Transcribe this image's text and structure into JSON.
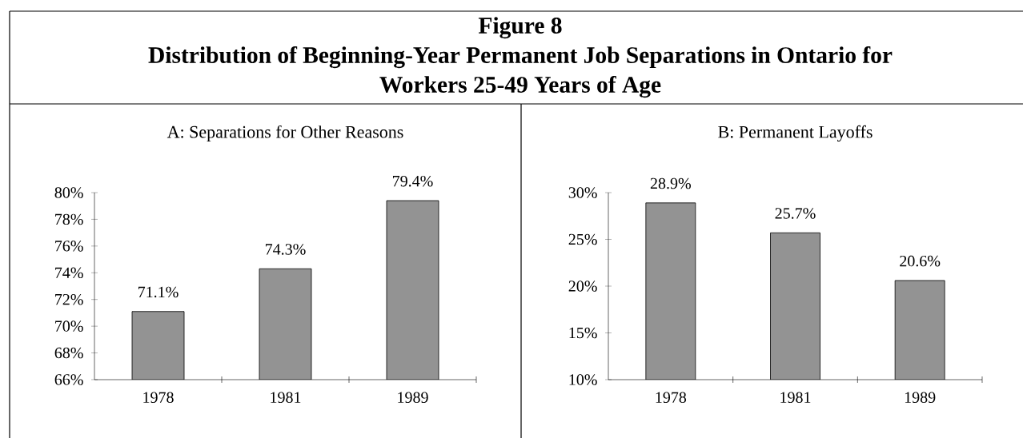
{
  "chart_data": [
    {
      "type": "other",
      "title": "Figure 8",
      "subtitle": "Distribution of Beginning-Year Permanent Job Separations in Ontario for Workers 25-49 Years of Age"
    },
    {
      "type": "bar",
      "title": "A: Separations for Other Reasons",
      "categories": [
        "1978",
        "1981",
        "1989"
      ],
      "values": [
        71.1,
        74.3,
        79.4
      ],
      "color": "#939393",
      "value_labels": [
        "71.1%",
        "74.3%",
        "79.4%"
      ],
      "ylim": [
        66,
        80
      ],
      "yticks": [
        {
          "value": 66,
          "label": "66%"
        },
        {
          "value": 68,
          "label": "68%"
        },
        {
          "value": 70,
          "label": "70%"
        },
        {
          "value": 72,
          "label": "72%"
        },
        {
          "value": 74,
          "label": "74%"
        },
        {
          "value": 76,
          "label": "76%"
        },
        {
          "value": 78,
          "label": "78%"
        },
        {
          "value": 80,
          "label": "80%"
        }
      ]
    },
    {
      "type": "bar",
      "title": "B: Permanent Layoffs",
      "categories": [
        "1978",
        "1981",
        "1989"
      ],
      "values": [
        28.9,
        25.7,
        20.6
      ],
      "color": "#939393",
      "value_labels": [
        "28.9%",
        "25.7%",
        "20.6%"
      ],
      "ylim": [
        10,
        30
      ],
      "yticks": [
        {
          "value": 10,
          "label": "10%"
        },
        {
          "value": 15,
          "label": "15%"
        },
        {
          "value": 20,
          "label": "20%"
        },
        {
          "value": 25,
          "label": "25%"
        },
        {
          "value": 30,
          "label": "30%"
        }
      ]
    }
  ]
}
